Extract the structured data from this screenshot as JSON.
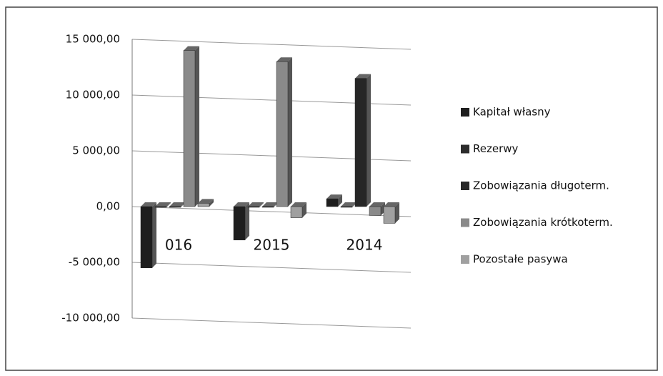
{
  "chart_data": {
    "type": "bar",
    "categories": [
      "016",
      "2015",
      "2014"
    ],
    "series": [
      {
        "name": "Kapitał własny",
        "color": "#1e1e1e",
        "values": [
          -5500,
          -3000,
          700
        ]
      },
      {
        "name": "Rezerwy",
        "color": "#2c2c2c",
        "values": [
          0,
          0,
          0
        ]
      },
      {
        "name": "Zobowiązania długoterm.",
        "color": "#262626",
        "values": [
          0,
          0,
          11500
        ]
      },
      {
        "name": "Zobowiązania krótkoterm.",
        "color": "#8a8a8a",
        "values": [
          14000,
          13000,
          -800
        ]
      },
      {
        "name": "Pozostałe pasywa",
        "color": "#a0a0a0",
        "values": [
          300,
          -1000,
          -1500
        ]
      }
    ],
    "ylim": [
      -10000,
      15000
    ],
    "yticks": [
      {
        "value": -10000,
        "label": "-10 000,00"
      },
      {
        "value": -5000,
        "label": "-5 000,00"
      },
      {
        "value": 0,
        "label": "0,00"
      },
      {
        "value": 5000,
        "label": "5 000,00"
      },
      {
        "value": 10000,
        "label": "10 000,00"
      },
      {
        "value": 15000,
        "label": "15 000,00"
      }
    ],
    "grid": true,
    "legend": "right"
  }
}
